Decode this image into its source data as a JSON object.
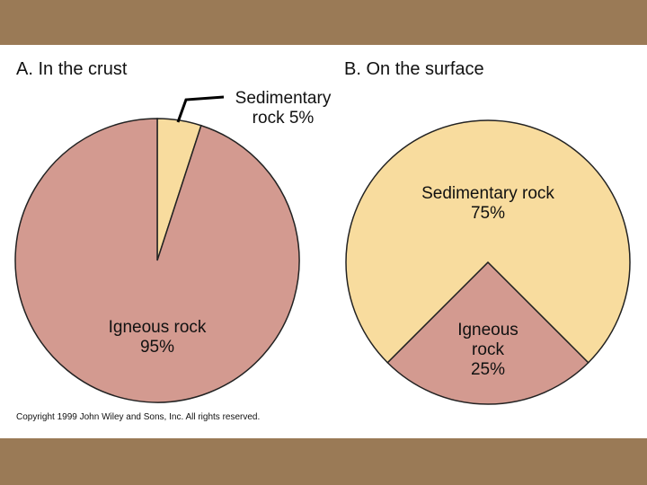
{
  "chart_data": [
    {
      "type": "pie",
      "title": "A. In the crust",
      "categories": [
        "Sedimentary rock",
        "Igneous rock"
      ],
      "values": [
        5,
        95
      ],
      "value_labels": [
        "5%",
        "95%"
      ],
      "colors": [
        "#f8dc9e",
        "#d39a90"
      ]
    },
    {
      "type": "pie",
      "title": "B. On the surface",
      "categories": [
        "Igneous rock",
        "Sedimentary rock"
      ],
      "values": [
        25,
        75
      ],
      "value_labels": [
        "25%",
        "75%"
      ],
      "colors": [
        "#d39a90",
        "#f8dc9e"
      ]
    }
  ],
  "copyright": "Copyright 1999 John Wiley and Sons, Inc. All rights reserved."
}
